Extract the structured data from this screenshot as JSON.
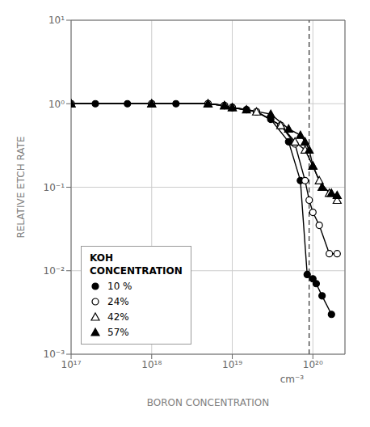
{
  "chart_data": {
    "type": "line",
    "title": "",
    "x_label": "BORON CONCENTRATION",
    "y_label": "RELATIVE ETCH RATE",
    "log": true,
    "grid": true,
    "legend": "lower left",
    "legend_title": "KOH\nCONCENTRATION",
    "xlim": [
      1e+17,
      2.5e+20
    ],
    "ylim": [
      0.001,
      10.0
    ],
    "xticks": [
      {
        "value": 1e+17,
        "label": "10¹⁷"
      },
      {
        "value": 1e+18,
        "label": "10¹⁸"
      },
      {
        "value": 1e+19,
        "label": "10¹⁹"
      },
      {
        "value": 1e+20,
        "label": "10²⁰"
      }
    ],
    "yticks": [
      {
        "value": 0.001,
        "label": "10⁻³"
      },
      {
        "value": 0.01,
        "label": "10⁻²"
      },
      {
        "value": 0.1,
        "label": "10⁻¹"
      },
      {
        "value": 1,
        "label": "10⁰"
      },
      {
        "value": 10,
        "label": "10¹"
      }
    ],
    "series": [
      {
        "name": "10 %",
        "color": "#000000",
        "marker": "circle",
        "x": [
          1e+17,
          2e+17,
          5e+17,
          1e+18,
          2e+18,
          5e+18,
          8e+18,
          1e+19,
          1.5e+19,
          2e+19,
          3e+19,
          5e+19,
          7e+19,
          8.5e+19,
          1e+20,
          1.1e+20,
          1.3e+20,
          1.7e+20
        ],
        "values": [
          1.0,
          1.0,
          1.0,
          1.0,
          1.0,
          1.0,
          0.95,
          0.9,
          0.85,
          0.8,
          0.65,
          0.35,
          0.12,
          0.009,
          0.008,
          0.007,
          0.005,
          0.003
        ]
      },
      {
        "name": "24%",
        "color": "#000000",
        "marker": "open_circle",
        "x": [
          1e+17,
          1e+18,
          5e+18,
          8e+18,
          1e+19,
          2e+19,
          4e+19,
          6e+19,
          8e+19,
          9e+19,
          1e+20,
          1.2e+20,
          1.6e+20,
          2e+20
        ],
        "values": [
          1.0,
          1.0,
          1.0,
          0.95,
          0.9,
          0.8,
          0.55,
          0.33,
          0.12,
          0.07,
          0.05,
          0.035,
          0.016,
          0.016
        ]
      },
      {
        "name": "42%",
        "color": "#000000",
        "marker": "open_triangle",
        "x": [
          1e+17,
          1e+18,
          5e+18,
          8e+18,
          1e+19,
          2e+19,
          4e+19,
          6e+19,
          8e+19,
          1e+20,
          1.2e+20,
          1.6e+20,
          2e+20
        ],
        "values": [
          1.0,
          1.0,
          1.0,
          0.95,
          0.9,
          0.8,
          0.55,
          0.35,
          0.28,
          0.18,
          0.12,
          0.085,
          0.07
        ]
      },
      {
        "name": "57%",
        "color": "#000000",
        "marker": "triangle",
        "x": [
          1e+17,
          1e+18,
          5e+18,
          8e+18,
          1e+19,
          1.5e+19,
          3e+19,
          5e+19,
          7e+19,
          8e+19,
          9e+19,
          1e+20,
          1.3e+20,
          1.7e+20,
          2e+20
        ],
        "values": [
          1.0,
          1.0,
          1.0,
          0.95,
          0.9,
          0.85,
          0.75,
          0.5,
          0.42,
          0.35,
          0.28,
          0.18,
          0.1,
          0.085,
          0.08
        ]
      }
    ],
    "vline": {
      "x": 9e+19,
      "line_style": "dashed"
    },
    "annotations": [
      {
        "text": "cm⁻³",
        "x": 5.5e+19,
        "y": 0.001
      }
    ]
  }
}
